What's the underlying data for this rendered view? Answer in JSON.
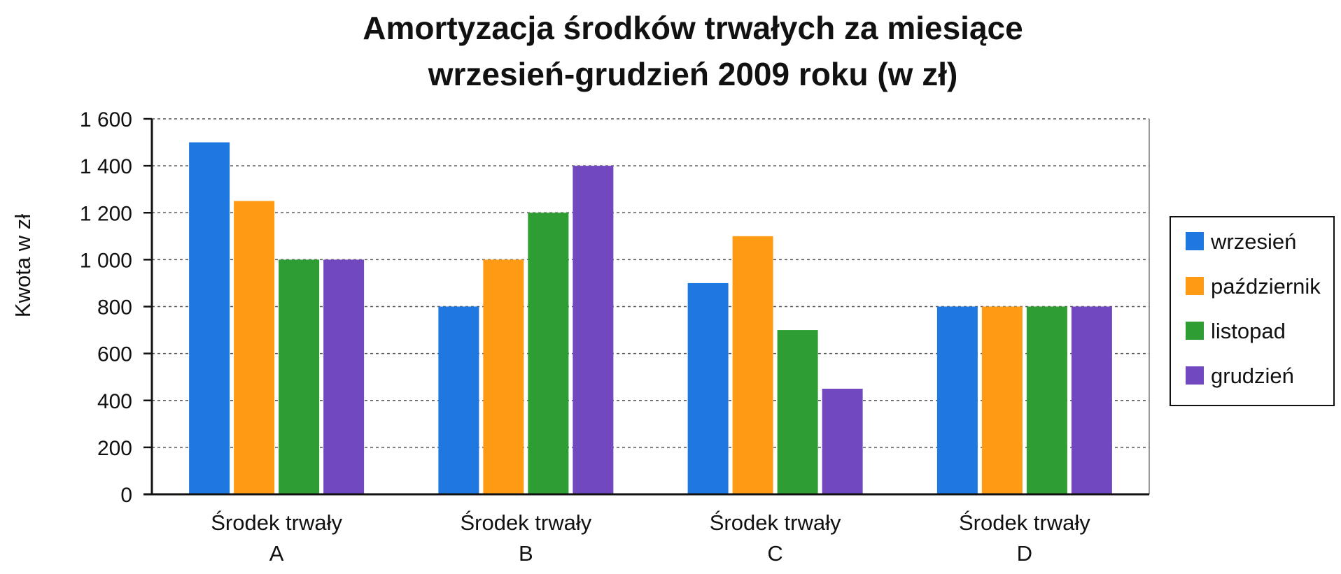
{
  "chart_data": {
    "type": "bar",
    "title": [
      "Amortyzacja środków trwałych za miesiące",
      "wrzesień-grudzień 2009 roku (w zł)"
    ],
    "ylabel": "Kwota w zł",
    "xlabel": "",
    "ylim": [
      0,
      1600
    ],
    "yticks": [
      0,
      200,
      400,
      600,
      800,
      1000,
      1200,
      1400,
      1600
    ],
    "ytick_labels": [
      "0",
      "200",
      "400",
      "600",
      "800",
      "1 000",
      "1 200",
      "1 400",
      "1 600"
    ],
    "grid": true,
    "legend_position": "right",
    "categories": [
      [
        "Środek trwały",
        "A"
      ],
      [
        "Środek trwały",
        "B"
      ],
      [
        "Środek trwały",
        "C"
      ],
      [
        "Środek trwały",
        "D"
      ]
    ],
    "series": [
      {
        "name": "wrzesień",
        "color": "#1f77e0",
        "values": [
          1500,
          800,
          900,
          800
        ]
      },
      {
        "name": "październik",
        "color": "#ff9a14",
        "values": [
          1250,
          1000,
          1100,
          800
        ]
      },
      {
        "name": "listopad",
        "color": "#2e9e34",
        "values": [
          1000,
          1200,
          700,
          800
        ]
      },
      {
        "name": "grudzień",
        "color": "#7148c0",
        "values": [
          1000,
          1400,
          450,
          800
        ]
      }
    ]
  }
}
